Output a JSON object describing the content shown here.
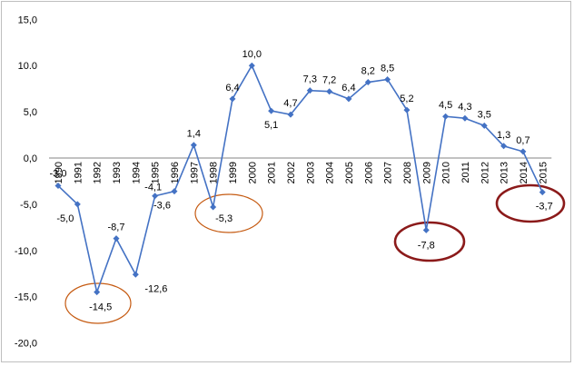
{
  "chart_data": {
    "type": "line",
    "title": "",
    "xlabel": "",
    "ylabel": "",
    "ylim": [
      -20,
      15
    ],
    "y_ticks": [
      "15,0",
      "10.0",
      "5,0",
      "0,0",
      "-5,0",
      "-10,0",
      "-15,0",
      "-20,0"
    ],
    "y_tick_values": [
      15,
      10,
      5,
      0,
      -5,
      -10,
      -15,
      -20
    ],
    "grid": false,
    "legend": "none",
    "series_color": "#4472c4",
    "categories": [
      "1990",
      "1991",
      "1992",
      "1993",
      "1994",
      "1995",
      "1996",
      "1997",
      "1998",
      "1999",
      "2000",
      "2001",
      "2002",
      "2003",
      "2004",
      "2005",
      "2006",
      "2007",
      "2008",
      "2009",
      "2010",
      "2011",
      "2012",
      "2013",
      "2014",
      "2015"
    ],
    "series": [
      {
        "values": [
          -3.0,
          -5.0,
          -14.5,
          -8.7,
          -12.6,
          -4.1,
          -3.6,
          1.4,
          -5.3,
          6.4,
          10.0,
          5.1,
          4.7,
          7.3,
          7.2,
          6.4,
          8.2,
          8.5,
          5.2,
          -7.8,
          4.5,
          4.3,
          3.5,
          1.3,
          0.7,
          -3.7
        ],
        "labels": [
          "-3,0",
          "-5,0",
          "-14,5",
          "-8,7",
          "-12,6",
          "-4,1",
          "-3,6",
          "1,4",
          "-5,3",
          "6,4",
          "10,0",
          "5,1",
          "4,7",
          "7,3",
          "7,2",
          "6,4",
          "8,2",
          "8,5",
          "5,2",
          "-7,8",
          "4,5",
          "4,3",
          "3,5",
          "1,3",
          "0,7",
          "-3,7"
        ]
      }
    ],
    "annotations": [
      {
        "shape": "ellipse",
        "around": "1992",
        "color": "#c55a11"
      },
      {
        "shape": "ellipse",
        "around": "1998",
        "color": "#c55a11"
      },
      {
        "shape": "ellipse",
        "around": "2009",
        "color": "#8b1a1a"
      },
      {
        "shape": "ellipse",
        "around": "2015",
        "color": "#8b1a1a"
      }
    ]
  }
}
